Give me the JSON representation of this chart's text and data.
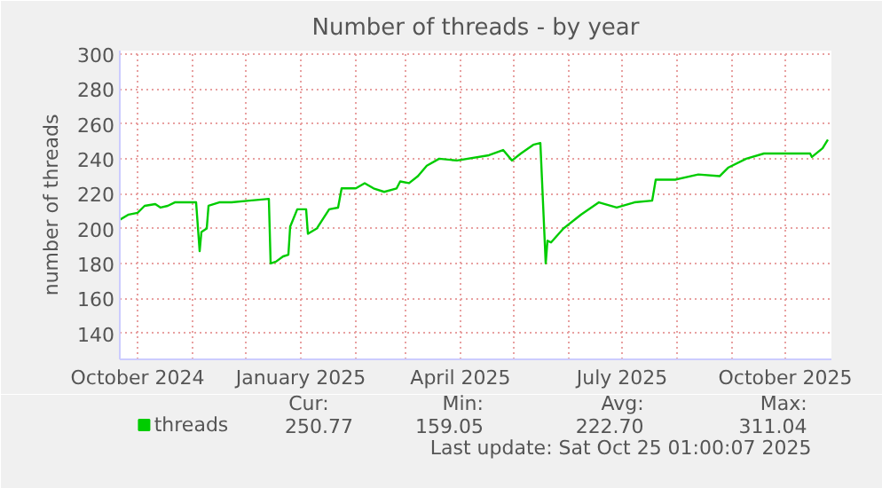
{
  "chart_data": {
    "type": "line",
    "title": "Number of threads - by year",
    "ylabel": "number of threads",
    "x": [
      "2024-09-21",
      "2024-09-26",
      "2024-10-01",
      "2024-10-05",
      "2024-10-11",
      "2024-10-14",
      "2024-10-18",
      "2024-10-22",
      "2024-11-03",
      "2024-11-05",
      "2024-11-06",
      "2024-11-09",
      "2024-11-10",
      "2024-11-16",
      "2024-11-23",
      "2024-12-03",
      "2024-12-14",
      "2024-12-15",
      "2024-12-18",
      "2024-12-22",
      "2024-12-25",
      "2024-12-26",
      "2024-12-30",
      "2025-01-04",
      "2025-01-05",
      "2025-01-10",
      "2025-01-17",
      "2025-01-22",
      "2025-01-24",
      "2025-02-01",
      "2025-02-06",
      "2025-02-11",
      "2025-02-17",
      "2025-02-24",
      "2025-02-26",
      "2025-03-03",
      "2025-03-08",
      "2025-03-13",
      "2025-03-20",
      "2025-03-30",
      "2025-04-17",
      "2025-04-25",
      "2025-04-30",
      "2025-05-05",
      "2025-05-12",
      "2025-05-16",
      "2025-05-19",
      "2025-05-20",
      "2025-05-22",
      "2025-05-29",
      "2025-06-08",
      "2025-06-18",
      "2025-06-28",
      "2025-07-08",
      "2025-07-18",
      "2025-07-20",
      "2025-07-31",
      "2025-08-13",
      "2025-08-25",
      "2025-08-30",
      "2025-09-09",
      "2025-09-19",
      "2025-09-29",
      "2025-10-15",
      "2025-10-16",
      "2025-10-22",
      "2025-10-25"
    ],
    "series": [
      {
        "name": "threads",
        "color": "#00cc00",
        "values": [
          205,
          208,
          209,
          213,
          214,
          212,
          213,
          215,
          215,
          187,
          198,
          200,
          213,
          215,
          215,
          216,
          217,
          180,
          181,
          184,
          185,
          201,
          211,
          211,
          197,
          200,
          211,
          212,
          223,
          223,
          226,
          223,
          221,
          223,
          227,
          226,
          230,
          236,
          240,
          239,
          242,
          245,
          239,
          243,
          248,
          249,
          180,
          193,
          192,
          200,
          208,
          215,
          212,
          215,
          216,
          228,
          228,
          231,
          230,
          235,
          240,
          243,
          243,
          243,
          241,
          246,
          251
        ]
      }
    ],
    "xlim": [
      "2024-09-21",
      "2025-10-27"
    ],
    "xticks": [
      {
        "value": "2024-10-01",
        "label": "October 2024"
      },
      {
        "value": "2024-11-01",
        "label": null
      },
      {
        "value": "2024-12-01",
        "label": null
      },
      {
        "value": "2025-01-01",
        "label": "January 2025"
      },
      {
        "value": "2025-02-01",
        "label": null
      },
      {
        "value": "2025-03-01",
        "label": null
      },
      {
        "value": "2025-04-01",
        "label": "April 2025"
      },
      {
        "value": "2025-05-01",
        "label": null
      },
      {
        "value": "2025-06-01",
        "label": null
      },
      {
        "value": "2025-07-01",
        "label": "July 2025"
      },
      {
        "value": "2025-08-01",
        "label": null
      },
      {
        "value": "2025-09-01",
        "label": null
      },
      {
        "value": "2025-10-01",
        "label": "October 2025"
      }
    ],
    "ylim": [
      125,
      302
    ],
    "yticks": [
      140,
      160,
      180,
      200,
      220,
      240,
      260,
      280,
      300
    ],
    "grid": true,
    "legend": "bottom left",
    "marker": "none",
    "line_style": "solid",
    "annotations": [
      "Cur:",
      "250.77",
      "Min:",
      "159.05",
      "Avg:",
      "222.70",
      "Max:",
      "311.04",
      "Last update: Sat Oct 25 01:00:07 2025"
    ]
  }
}
